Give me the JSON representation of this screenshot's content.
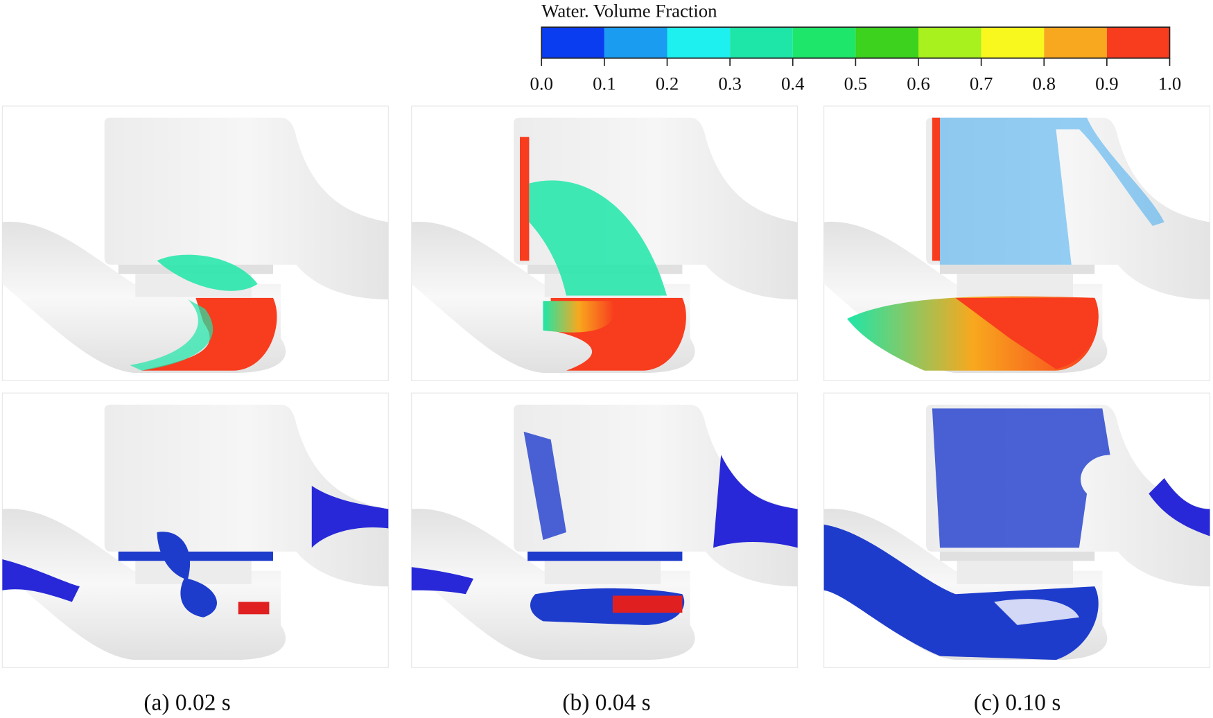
{
  "colorbar": {
    "title": "Water. Volume Fraction",
    "colors": [
      "#0a3cf0",
      "#1a9cf0",
      "#1ef0f0",
      "#1ee6a8",
      "#1ee66a",
      "#3cd21e",
      "#a8f01e",
      "#f8f81e",
      "#f8a81e",
      "#f83c1e"
    ],
    "ticks": [
      {
        "value": 0,
        "label": "0.0"
      },
      {
        "value": 0.1,
        "label": "0.1"
      },
      {
        "value": 0.2,
        "label": "0.2"
      },
      {
        "value": 0.3,
        "label": "0.3"
      },
      {
        "value": 0.4,
        "label": "0.4"
      },
      {
        "value": 0.5,
        "label": "0.5"
      },
      {
        "value": 0.6,
        "label": "0.6"
      },
      {
        "value": 0.7,
        "label": "0.7"
      },
      {
        "value": 0.8,
        "label": "0.8"
      },
      {
        "value": 0.9,
        "label": "0.9"
      },
      {
        "value": 1,
        "label": "1.0"
      }
    ]
  },
  "panels": [
    {
      "caption": "(a) 0.02 s"
    },
    {
      "caption": "(b) 0.04 s"
    },
    {
      "caption": "(c) 0.10 s"
    }
  ]
}
